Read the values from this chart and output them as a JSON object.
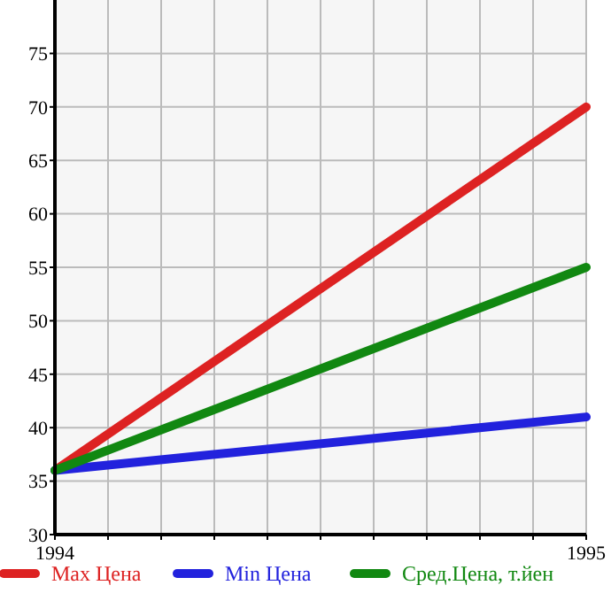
{
  "chart_data": {
    "type": "line",
    "x": [
      1994,
      1995
    ],
    "xlim": [
      1994,
      1995
    ],
    "xticks": [
      1994,
      {
        "value": 1994.1,
        "label": null
      },
      {
        "value": 1994.2,
        "label": null
      },
      {
        "value": 1994.3,
        "label": null
      },
      {
        "value": 1994.4,
        "label": null
      },
      {
        "value": 1994.5,
        "label": null
      },
      {
        "value": 1994.6,
        "label": null
      },
      {
        "value": 1994.7,
        "label": null
      },
      {
        "value": 1994.8,
        "label": null
      },
      {
        "value": 1994.9,
        "label": null
      },
      1995
    ],
    "ylim": [
      30,
      80
    ],
    "yticks": [
      30,
      35,
      40,
      45,
      50,
      55,
      60,
      65,
      70,
      75
    ],
    "grid": true,
    "legend": "bottom",
    "marker": "none",
    "line_style": "solid",
    "series": [
      {
        "name": "Max Цена",
        "color": "#dd2222",
        "values": [
          36,
          70
        ]
      },
      {
        "name": "Min Цена",
        "color": "#2222dd",
        "values": [
          36,
          41
        ]
      },
      {
        "name": "Сред.Цена, т.йен",
        "color": "#118811",
        "values": [
          36,
          55
        ]
      }
    ]
  }
}
